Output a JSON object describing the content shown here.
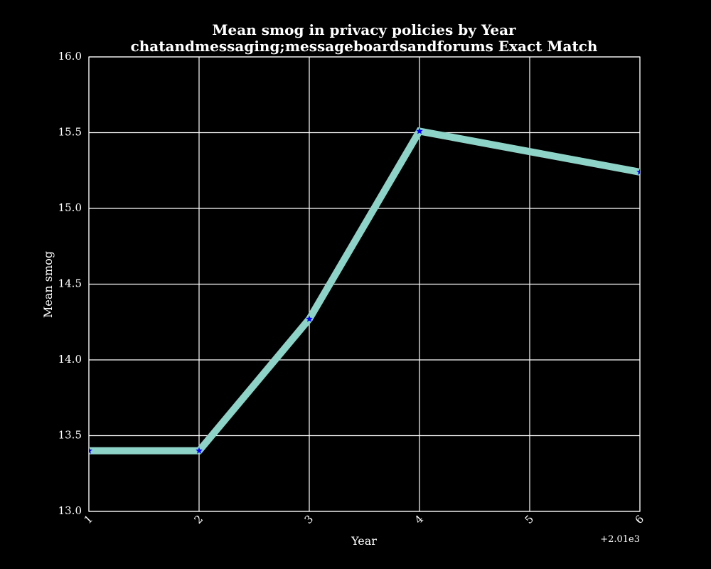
{
  "chart_data": {
    "type": "line",
    "title": "Mean smog in privacy policies by Year",
    "subtitle": "chatandmessaging;messageboardsandforums Exact Match",
    "xlabel": "Year",
    "ylabel": "Mean smog",
    "x_offset_label": "+2.01e3",
    "xlim": [
      1,
      6
    ],
    "ylim": [
      13.0,
      16.0
    ],
    "x_ticks": [
      1,
      2,
      3,
      4,
      5,
      6
    ],
    "y_ticks": [
      13.0,
      13.5,
      14.0,
      14.5,
      15.0,
      15.5,
      16.0
    ],
    "x_tick_labels": [
      "1",
      "2",
      "3",
      "4",
      "5",
      "6"
    ],
    "y_tick_labels": [
      "13.0",
      "13.5",
      "14.0",
      "14.5",
      "15.0",
      "15.5",
      "16.0"
    ],
    "grid": true,
    "series": [
      {
        "x": [
          1,
          2,
          3,
          4,
          6
        ],
        "values": [
          13.4,
          13.4,
          14.27,
          15.51,
          15.24
        ],
        "color": "#8ed3c7",
        "marker": "star",
        "marker_color": "#0000ff"
      }
    ],
    "colors": {
      "background": "#000000",
      "foreground": "#ffffff",
      "line": "#8ed3c7",
      "marker": "#0000ff"
    }
  }
}
